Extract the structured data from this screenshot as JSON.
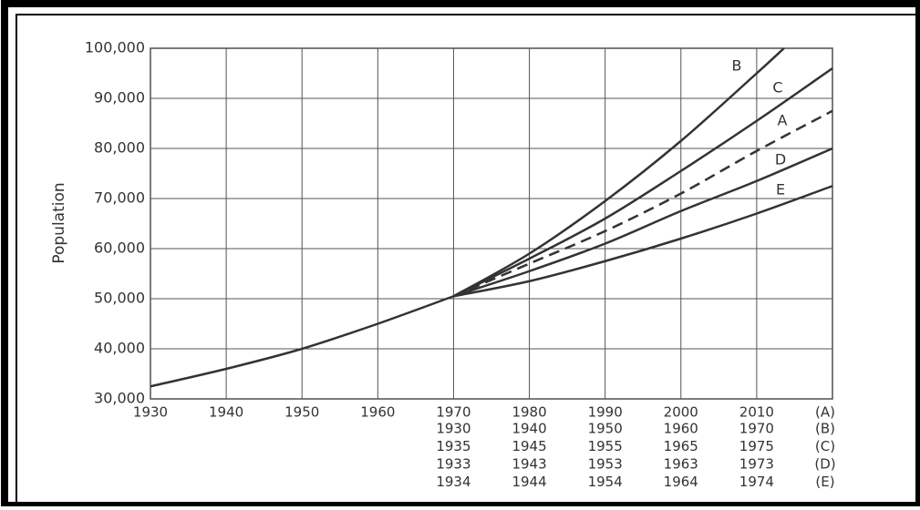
{
  "chart_data": {
    "type": "line",
    "ylabel": "Population",
    "xlim": [
      1930,
      2020
    ],
    "ylim": [
      30000,
      100000
    ],
    "xticks": [
      1930,
      1940,
      1950,
      1960,
      1970,
      1980,
      1990,
      2000,
      2010,
      {
        "value": 2020,
        "label": "(A)"
      }
    ],
    "extra_x_rows": [
      {
        "ticks": [
          {
            "value": 1970,
            "label": "1930"
          },
          {
            "value": 1980,
            "label": "1940"
          },
          {
            "value": 1990,
            "label": "1950"
          },
          {
            "value": 2000,
            "label": "1960"
          },
          {
            "value": 2010,
            "label": "1970"
          },
          {
            "value": 2020,
            "label": "(B)"
          }
        ]
      },
      {
        "ticks": [
          {
            "value": 1970,
            "label": "1935"
          },
          {
            "value": 1980,
            "label": "1945"
          },
          {
            "value": 1990,
            "label": "1955"
          },
          {
            "value": 2000,
            "label": "1965"
          },
          {
            "value": 2010,
            "label": "1975"
          },
          {
            "value": 2020,
            "label": "(C)"
          }
        ]
      },
      {
        "ticks": [
          {
            "value": 1970,
            "label": "1933"
          },
          {
            "value": 1980,
            "label": "1943"
          },
          {
            "value": 1990,
            "label": "1953"
          },
          {
            "value": 2000,
            "label": "1963"
          },
          {
            "value": 2010,
            "label": "1973"
          },
          {
            "value": 2020,
            "label": "(D)"
          }
        ]
      },
      {
        "ticks": [
          {
            "value": 1970,
            "label": "1934"
          },
          {
            "value": 1980,
            "label": "1944"
          },
          {
            "value": 1990,
            "label": "1954"
          },
          {
            "value": 2000,
            "label": "1964"
          },
          {
            "value": 2010,
            "label": "1974"
          },
          {
            "value": 2020,
            "label": "(E)"
          }
        ]
      }
    ],
    "yticks": [
      {
        "value": 30000,
        "label": "30,000"
      },
      {
        "value": 40000,
        "label": "40,000"
      },
      {
        "value": 50000,
        "label": "50,000"
      },
      {
        "value": 60000,
        "label": "60,000"
      },
      {
        "value": 70000,
        "label": "70,000"
      },
      {
        "value": 80000,
        "label": "80,000"
      },
      {
        "value": 90000,
        "label": "90,000"
      },
      {
        "value": 100000,
        "label": "100,000"
      }
    ],
    "grid": true,
    "series": [
      {
        "color": "#333333",
        "x": [
          1930,
          1940,
          1950,
          1960,
          1970
        ],
        "values": [
          32500,
          36000,
          40000,
          45000,
          50500
        ]
      },
      {
        "name": "B",
        "color": "#333333",
        "x": [
          1970,
          1980,
          1990,
          2000,
          2010,
          2013.6
        ],
        "values": [
          50500,
          59000,
          69500,
          81500,
          95000,
          100000
        ]
      },
      {
        "name": "C",
        "color": "#333333",
        "x": [
          1970,
          1980,
          1990,
          2000,
          2010,
          2020
        ],
        "values": [
          50500,
          58000,
          66000,
          75500,
          85500,
          96000
        ]
      },
      {
        "name": "A",
        "color": "#333333",
        "dashed": true,
        "x": [
          1970,
          1980,
          1990,
          2000,
          2010,
          2020
        ],
        "values": [
          50500,
          57000,
          63500,
          71000,
          79500,
          87500
        ]
      },
      {
        "name": "D",
        "color": "#333333",
        "x": [
          1970,
          1980,
          1990,
          2000,
          2010,
          2020
        ],
        "values": [
          50500,
          55500,
          61000,
          67500,
          73500,
          80000
        ]
      },
      {
        "name": "E",
        "color": "#333333",
        "x": [
          1970,
          1980,
          1990,
          2000,
          2010,
          2020
        ],
        "values": [
          50500,
          53500,
          57500,
          62000,
          67000,
          72500
        ]
      }
    ]
  }
}
